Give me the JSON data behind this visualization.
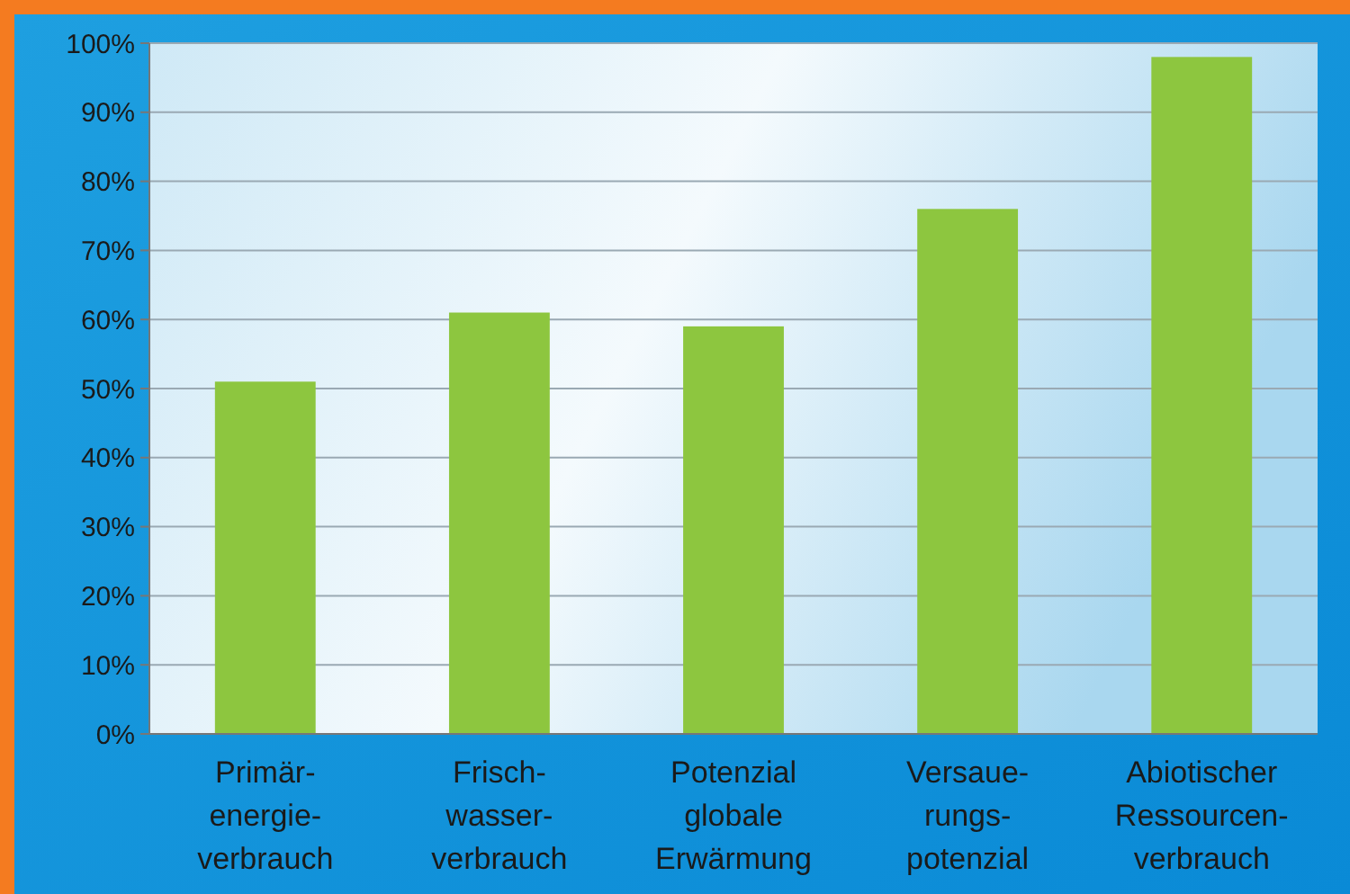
{
  "chart_data": {
    "type": "bar",
    "categories": [
      "Primär-\nenergie-\nverbrauch",
      "Frisch-\nwasser-\nverbrauch",
      "Potenzial\nglobale\nErwärmung",
      "Versaue-\nrungs-\npotenzial",
      "Abiotischer\nRessourcen-\nverbrauch"
    ],
    "values": [
      51,
      61,
      59,
      76,
      98
    ],
    "color": "#8dc63f",
    "ylim": [
      0,
      100
    ],
    "yticks": [
      {
        "value": 0,
        "label": "0%"
      },
      {
        "value": 10,
        "label": "10%"
      },
      {
        "value": 20,
        "label": "20%"
      },
      {
        "value": 30,
        "label": "30%"
      },
      {
        "value": 40,
        "label": "40%"
      },
      {
        "value": 50,
        "label": "50%"
      },
      {
        "value": 60,
        "label": "60%"
      },
      {
        "value": 70,
        "label": "70%"
      },
      {
        "value": 80,
        "label": "80%"
      },
      {
        "value": 90,
        "label": "90%"
      },
      {
        "value": 100,
        "label": "100%"
      }
    ],
    "grid": "y"
  }
}
